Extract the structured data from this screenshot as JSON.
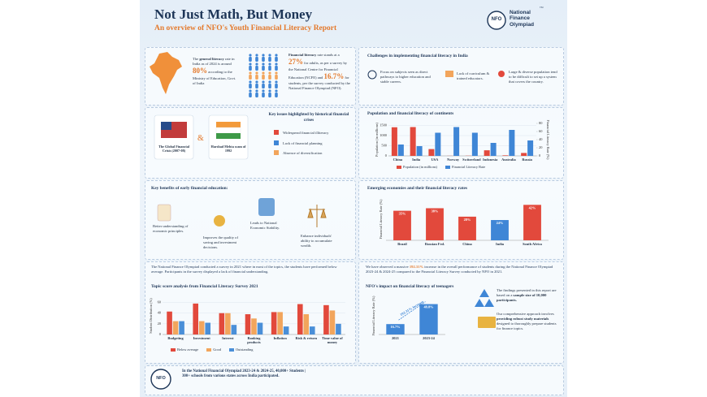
{
  "header": {
    "title": "Not Just Math, But Money",
    "subtitle": "An overview of NFO's Youth Financial Literacy Report",
    "logo": "NFO",
    "brand": "National Finance Olympiad",
    "trademark": "TM"
  },
  "literacy": {
    "general_lead": "The",
    "general_bold": "general literacy",
    "general_text": "rate in India as of 2024 is around",
    "general_value": "80%",
    "general_source": "according to the Ministry of Education, Govt. of India",
    "financial_bold": "Financial literacy",
    "financial_text": "rate stands at a",
    "adult_value": "27%",
    "adult_source": "for adults, as per a survey by the National Centre for Financial Education (NCFE) and",
    "student_value": "16.7%",
    "student_source": "for students, per the survey conducted by the National Finance Olympiad (NFO)."
  },
  "challenges": {
    "title": "Challenges in implementing financial literacy in India",
    "items": [
      "Focus on subjects seen as direct pathways to higher education and stable careers.",
      "Lack of curriculum & trained educators.",
      "Large & diverse population tend to be difficult to set up a system that covers the country."
    ]
  },
  "crises": {
    "cards": [
      "The Global Financial Crisis (2007-08)",
      "Harshad Mehta scam of 1992"
    ],
    "joiner": "&",
    "title": "Key issues highlighted by historical financial crises",
    "items": [
      "Widespread financial illiteracy",
      "Lack of financial planning",
      "Absence of diversification"
    ]
  },
  "benefits": {
    "title": "Key benefits of early financial education:",
    "items": [
      "Better understanding of economic principles.",
      "Improves the quality of saving and investment decisions.",
      "Leads to National Economic Stability.",
      "Enhance individuals' ability to accumulate wealth."
    ]
  },
  "survey": {
    "text": "The National Finance Olympiad conducted a survey in 2021 where in most of the topics, the students have performed below average. Participants in the survey displayed a lack of financial understanding."
  },
  "impact": {
    "lead": "We have observed a massive",
    "highlight": "192.31%",
    "text": "increase in the overall performance of students during the National Finance Olympiad 2023-24 & 2024-25 compared to the Financial Literacy Survey conducted by NFO in 2021."
  },
  "findings": {
    "sample_lead": "The findings presented in this report are based on a",
    "sample_bold": "sample size of 10,000 participants.",
    "approach_lead": "Our comprehensive approach involves",
    "approach_bold": "providing robust study materials",
    "approach_rest": "designed to thoroughly prepare students for finance topics."
  },
  "footer": {
    "text": "In the National Financial Olympiad 2023-24 & 2024-25, 40,000+ Students | 300+ schools from various states across India participated."
  },
  "chart_data": [
    {
      "type": "bar",
      "title": "Population and financial literacy of continents",
      "categories": [
        "China",
        "India",
        "USA",
        "Norway",
        "Switzerland",
        "Indonesia",
        "Australia",
        "Russia"
      ],
      "series": [
        {
          "name": "Population (in millions)",
          "color": "#e2493c",
          "values": [
            1410,
            1420,
            335,
            5,
            9,
            275,
            26,
            144
          ]
        },
        {
          "name": "Financial Literacy Rate",
          "color": "#3f86d6",
          "axis": "y2",
          "values": [
            28,
            24,
            57,
            71,
            57,
            32,
            64,
            38
          ]
        }
      ],
      "y_label": "Population (in millions)",
      "y2_label": "Financial Literacy Rate (%)",
      "ylim": [
        0,
        1600
      ],
      "yticks": [
        0,
        500,
        1000,
        1500
      ],
      "y2lim": [
        0,
        80
      ],
      "y2ticks": [
        0,
        20,
        40,
        60,
        80
      ],
      "grid": true
    },
    {
      "type": "bar",
      "title": "Emerging economies and their financial literacy rates",
      "categories": [
        "Brazil",
        "Russian Fed.",
        "China",
        "India",
        "South Africa"
      ],
      "values": [
        35,
        38,
        28,
        24,
        42
      ],
      "value_labels": [
        "35%",
        "38%",
        "28%",
        "24%",
        "42%"
      ],
      "color": "#e2493c",
      "colors": [
        "#e2493c",
        "#e2493c",
        "#e2493c",
        "#3f86d6",
        "#e2493c"
      ],
      "y_label": "Financial Literacy Rate (%)",
      "ylim": [
        0,
        50
      ],
      "grid": false
    },
    {
      "type": "bar",
      "title": "Topic score analysis from Financial Literacy Survey 2021",
      "categories": [
        "Budgeting",
        "Investment",
        "Interest",
        "Banking products",
        "Inflation",
        "Risk & return",
        "Time value of money"
      ],
      "series": [
        {
          "name": "Below average",
          "color": "#e2493c",
          "values": [
            43,
            58,
            40,
            38,
            42,
            57,
            55
          ]
        },
        {
          "name": "Good",
          "color": "#f2a55c",
          "values": [
            25,
            25,
            40,
            30,
            42,
            38,
            45
          ]
        },
        {
          "name": "Outstanding",
          "color": "#4a8fd8",
          "values": [
            25,
            22,
            18,
            22,
            15,
            15,
            20
          ]
        }
      ],
      "y_label": "Student Distribution (%)",
      "ylim": [
        0,
        70
      ],
      "yticks": [
        0,
        20,
        40,
        60
      ],
      "grid": true
    },
    {
      "type": "bar",
      "title": "NFO's impact on financial literacy of teenagers",
      "categories": [
        "2021",
        "2023-24"
      ],
      "values": [
        16.7,
        48.8
      ],
      "value_labels": [
        "16.7%",
        "48.8%"
      ],
      "color": "#3f86d6",
      "y_label": "Financial Literacy Rate (%)",
      "ylim": [
        0,
        60
      ],
      "annotation": "192.31% increase",
      "grid": false
    }
  ]
}
